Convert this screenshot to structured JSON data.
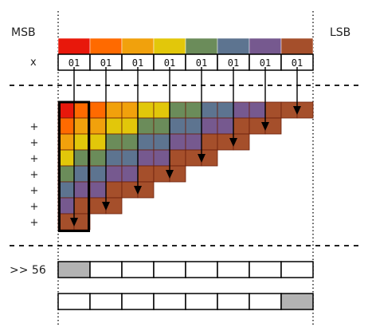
{
  "labels": {
    "msb": "MSB",
    "lsb": "LSB",
    "multiply": "x",
    "plus": "+",
    "shift": ">> 56"
  },
  "byte_value": "01",
  "byte_count": 8,
  "byte_colors": [
    "#e8180b",
    "#ff6a00",
    "#f1a10c",
    "#e2c70a",
    "#6b8c5a",
    "#5d7490",
    "#76598f",
    "#a54f2b"
  ],
  "partial_rows": 8,
  "plus_count": 7,
  "empty_fill": "#ffffff",
  "highlight_fill": "#b3b3b3",
  "shift_result_highlight_index": 0,
  "final_result_highlight_index": 7,
  "icons": [
    "down-arrow-icon"
  ]
}
